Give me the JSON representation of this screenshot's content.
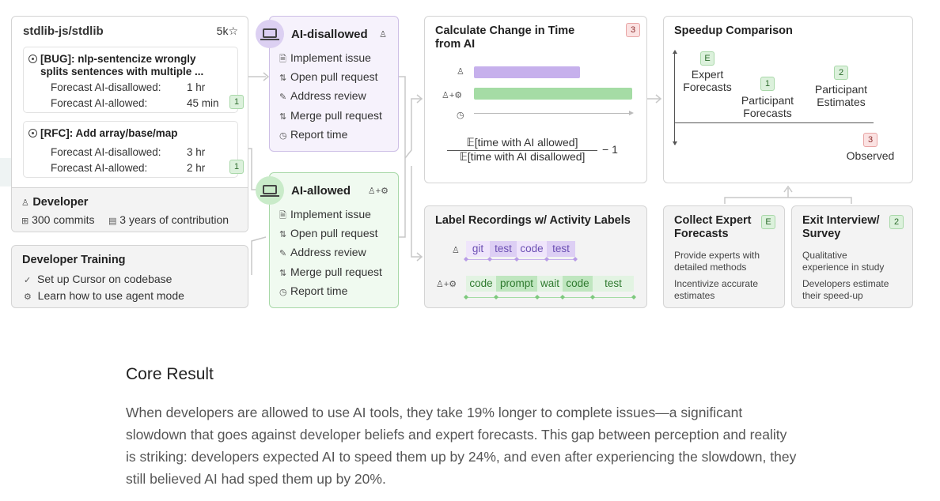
{
  "repo": {
    "title": "stdlib-js/stdlib",
    "stars": "5k☆",
    "issues": [
      {
        "title": "[BUG]: nlp-sentencize wrongly splits sentences with multiple ...",
        "title_l1": "[BUG]: nlp-sentencize wrongly",
        "title_l2": "splits sentences with multiple ...",
        "disallowed_label": "Forecast AI-disallowed:",
        "disallowed_value": "1 hr",
        "allowed_label": "Forecast AI-allowed:",
        "allowed_value": "45 min",
        "badge": "1"
      },
      {
        "title": "[RFC]: Add array/base/map",
        "disallowed_label": "Forecast AI-disallowed:",
        "disallowed_value": "3 hr",
        "allowed_label": "Forecast AI-allowed:",
        "allowed_value": "2 hr",
        "badge": "1"
      }
    ]
  },
  "developer": {
    "title": "Developer",
    "commits": "300 commits",
    "years": "3 years of contribution"
  },
  "training": {
    "title": "Developer Training",
    "items": [
      "Set up Cursor on codebase",
      "Learn how to use agent mode"
    ]
  },
  "conditions": [
    {
      "title": "AI-disallowed",
      "color": "#e9dff8",
      "steps": [
        "Implement issue",
        "Open pull request",
        "Address review",
        "Merge pull request",
        "Report time"
      ]
    },
    {
      "title": "AI-allowed",
      "color": "#e6f5e6",
      "steps": [
        "Implement issue",
        "Open pull request",
        "Address review",
        "Merge pull request",
        "Report time"
      ]
    }
  ],
  "calc": {
    "title_l1": "Calculate Change in Time",
    "title_l2": "from AI",
    "badge": "3",
    "numerator": "𝔼[time with AI allowed]",
    "denominator": "𝔼[time with AI disallowed]",
    "minus_one": "− 1",
    "bar_disallowed_fraction": 0.67,
    "bar_allowed_fraction": 1.0
  },
  "speedup": {
    "title": "Speedup Comparison",
    "items": [
      {
        "badge": "E",
        "label_l1": "Expert",
        "label_l2": "Forecasts"
      },
      {
        "badge": "1",
        "label_l1": "Participant",
        "label_l2": "Forecasts"
      },
      {
        "badge": "2",
        "label_l1": "Participant",
        "label_l2": "Estimates"
      },
      {
        "badge": "3",
        "label_l1": "Observed",
        "label_l2": ""
      }
    ]
  },
  "label_recordings": {
    "title": "Label Recordings w/ Activity Labels",
    "dev_segments": [
      "git",
      "test",
      "code",
      "test"
    ],
    "ai_segments": [
      "code",
      "prompt",
      "wait",
      "code",
      "test"
    ]
  },
  "expert": {
    "title_l1": "Collect Expert",
    "title_l2": "Forecasts",
    "badge": "E",
    "desc1_l1": "Provide experts with",
    "desc1_l2": "detailed methods",
    "desc2_l1": "Incentivize accurate",
    "desc2_l2": "estimates"
  },
  "exit": {
    "title_l1": "Exit Interview/",
    "title_l2": "Survey",
    "badge": "2",
    "desc1_l1": "Qualitative",
    "desc1_l2": "experience in study",
    "desc2_l1": "Developers estimate",
    "desc2_l2": "their speed-up"
  },
  "core": {
    "title": "Core Result",
    "body": "When developers are allowed to use AI tools, they take 19% longer to complete issues—a significant slowdown that goes against developer beliefs and expert forecasts. This gap between perception and reality is striking: developers expected AI to speed them up by 24%, and even after experiencing the slowdown, they still believed AI had sped them up by 20%."
  }
}
